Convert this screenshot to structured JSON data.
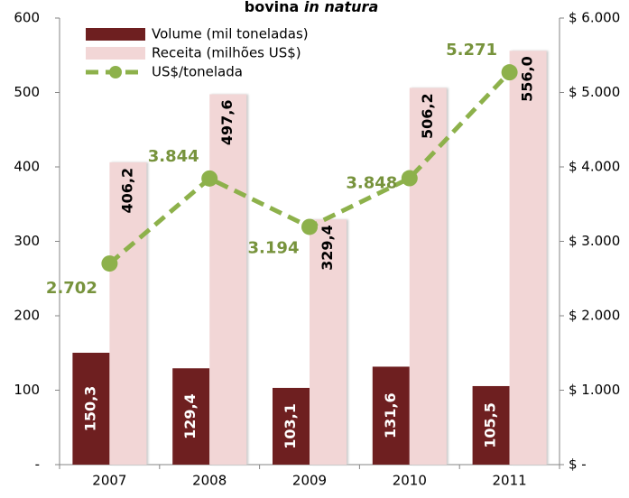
{
  "chart_data": {
    "type": "bar-line",
    "title_parts": [
      "bovina ",
      "in natura"
    ],
    "categories": [
      "2007",
      "2008",
      "2009",
      "2010",
      "2011"
    ],
    "series": [
      {
        "name": "Volume (mil toneladas)",
        "type": "bar",
        "color": "#6e1f20",
        "values": [
          150.3,
          129.4,
          103.1,
          131.6,
          105.5
        ],
        "value_labels": [
          "150,3",
          "129,4",
          "103,1",
          "131,6",
          "105,5"
        ]
      },
      {
        "name": "Receita (milhões US$)",
        "type": "bar",
        "color": "#f2d6d6",
        "values": [
          406.2,
          497.6,
          329.4,
          506.2,
          556.0
        ],
        "value_labels": [
          "406,2",
          "497,6",
          "329,4",
          "506,2",
          "556,0"
        ]
      },
      {
        "name": "US$/tonelada",
        "type": "line",
        "axis": "y2",
        "color": "#8db14b",
        "label_color": "#77933c",
        "values": [
          2702,
          3844,
          3194,
          3848,
          5271
        ],
        "value_labels": [
          "2.702",
          "3.844",
          "3.194",
          "3.848",
          "5.271"
        ]
      }
    ],
    "ylim": [
      0,
      600
    ],
    "yticks": [
      {
        "value": 0,
        "label": "-"
      },
      100,
      200,
      300,
      400,
      500,
      600
    ],
    "y2lim": [
      0,
      6000
    ],
    "y2ticks": [
      {
        "value": 0,
        "label": "$ -"
      },
      {
        "value": 1000,
        "label": "$ 1.000"
      },
      {
        "value": 2000,
        "label": "$ 2.000"
      },
      {
        "value": 3000,
        "label": "$ 3.000"
      },
      {
        "value": 4000,
        "label": "$ 4.000"
      },
      {
        "value": 5000,
        "label": "$ 5.000"
      },
      {
        "value": 6000,
        "label": "$ 6.000"
      }
    ]
  }
}
